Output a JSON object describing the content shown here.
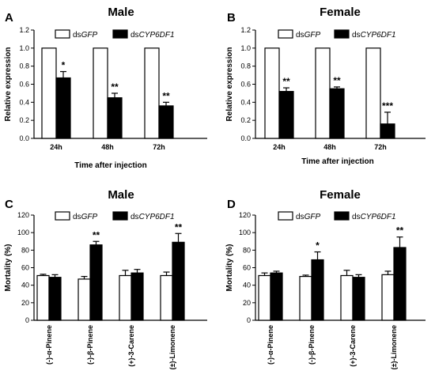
{
  "chart_data": [
    {
      "type": "bar",
      "panel_label": "A",
      "title": "Male",
      "categories": [
        "24h",
        "48h",
        "72h"
      ],
      "xlabel": "Time after injection",
      "ylabel": "Relative expression",
      "ylim": [
        0,
        1.2
      ],
      "yticks": [
        "0.0",
        "0.2",
        "0.4",
        "0.6",
        "0.8",
        "1.0",
        "1.2"
      ],
      "legend": {
        "position": "top",
        "gfp": "dsGFP",
        "cyp": "dsCYP6DF1"
      },
      "series": [
        {
          "name": "dsGFP",
          "values": [
            1.0,
            1.0,
            1.0
          ],
          "errors": [
            0,
            0,
            0
          ],
          "color": "#ffffff"
        },
        {
          "name": "dsCYP6DF1",
          "values": [
            0.67,
            0.45,
            0.36
          ],
          "errors": [
            0.07,
            0.05,
            0.04
          ],
          "color": "#000000"
        }
      ],
      "significance": [
        "*",
        "**",
        "**"
      ]
    },
    {
      "type": "bar",
      "panel_label": "B",
      "title": "Female",
      "categories": [
        "24h",
        "48h",
        "72h"
      ],
      "xlabel": "Time after injection",
      "ylabel": "Relative expression",
      "ylim": [
        0,
        1.2
      ],
      "yticks": [
        "0.0",
        "0.2",
        "0.4",
        "0.6",
        "0.8",
        "1.0",
        "1.2"
      ],
      "legend": {
        "position": "top",
        "gfp": "dsGFP",
        "cyp": "dsCYP6DF1"
      },
      "series": [
        {
          "name": "dsGFP",
          "values": [
            1.0,
            1.0,
            1.0
          ],
          "errors": [
            0,
            0,
            0
          ],
          "color": "#ffffff"
        },
        {
          "name": "dsCYP6DF1",
          "values": [
            0.52,
            0.55,
            0.16
          ],
          "errors": [
            0.04,
            0.02,
            0.13
          ],
          "color": "#000000"
        }
      ],
      "significance": [
        "**",
        "**",
        "***"
      ]
    },
    {
      "type": "bar",
      "panel_label": "C",
      "title": "Male",
      "categories": [
        "(-)-α-Pinene",
        "(-)-β-Pinene",
        "(+)-3-Carene",
        "(±)-Limonene"
      ],
      "xlabel": "",
      "ylabel": "Mortality (%)",
      "ylim": [
        0,
        120
      ],
      "yticks": [
        "0",
        "20",
        "40",
        "60",
        "80",
        "100",
        "120"
      ],
      "legend": {
        "position": "top",
        "gfp": "dsGFP",
        "cyp": "dsCYP6DF1"
      },
      "series": [
        {
          "name": "dsGFP",
          "values": [
            51,
            47,
            51,
            51
          ],
          "errors": [
            1.5,
            3,
            6,
            4
          ],
          "color": "#ffffff"
        },
        {
          "name": "dsCYP6DF1",
          "values": [
            49,
            86,
            54,
            89
          ],
          "errors": [
            3,
            4,
            4,
            10
          ],
          "color": "#000000"
        }
      ],
      "significance": [
        "",
        "**",
        "",
        "**"
      ]
    },
    {
      "type": "bar",
      "panel_label": "D",
      "title": "Female",
      "categories": [
        "(-)-α-Pinene",
        "(-)-β-Pinene",
        "(+)-3-Carene",
        "(±)-Limonene"
      ],
      "xlabel": "",
      "ylabel": "Mortality (%)",
      "ylim": [
        0,
        120
      ],
      "yticks": [
        "0",
        "20",
        "40",
        "60",
        "80",
        "100",
        "120"
      ],
      "legend": {
        "position": "top",
        "gfp": "dsGFP",
        "cyp": "dsCYP6DF1"
      },
      "series": [
        {
          "name": "dsGFP",
          "values": [
            51,
            50,
            51,
            52
          ],
          "errors": [
            3,
            1.5,
            6,
            4
          ],
          "color": "#ffffff"
        },
        {
          "name": "dsCYP6DF1",
          "values": [
            54,
            69,
            49,
            83
          ],
          "errors": [
            2,
            9,
            3,
            12
          ],
          "color": "#000000"
        }
      ],
      "significance": [
        "",
        "*",
        "",
        "**"
      ]
    }
  ]
}
